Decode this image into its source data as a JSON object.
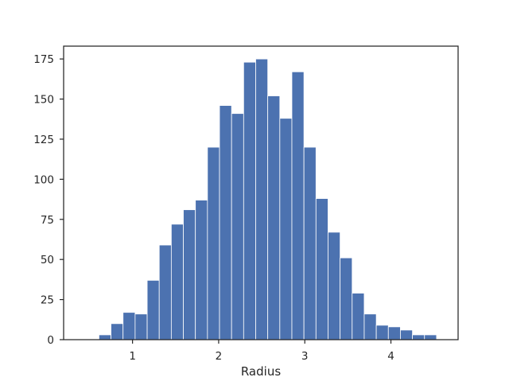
{
  "chart_data": {
    "type": "bar",
    "xlabel": "Radius",
    "ylabel": "",
    "xlim": [
      0.2,
      4.78
    ],
    "ylim": [
      0,
      183
    ],
    "x_ticks": [
      1,
      2,
      3,
      4
    ],
    "x_tick_labels": [
      "1",
      "2",
      "3",
      "4"
    ],
    "y_ticks": [
      0,
      25,
      50,
      75,
      100,
      125,
      150,
      175
    ],
    "y_tick_labels": [
      "0",
      "25",
      "50",
      "75",
      "100",
      "125",
      "150",
      "175"
    ],
    "grid": false,
    "bin_edges": [
      0.61,
      0.75,
      0.89,
      1.03,
      1.17,
      1.31,
      1.45,
      1.59,
      1.73,
      1.87,
      2.01,
      2.15,
      2.29,
      2.43,
      2.57,
      2.71,
      2.85,
      2.99,
      3.13,
      3.27,
      3.41,
      3.55,
      3.69,
      3.83,
      3.97,
      4.11,
      4.25,
      4.39,
      4.53,
      4.67
    ],
    "values": [
      3,
      10,
      17,
      16,
      37,
      59,
      72,
      81,
      87,
      120,
      146,
      141,
      173,
      175,
      152,
      138,
      167,
      120,
      88,
      67,
      51,
      29,
      16,
      9,
      8,
      6,
      3,
      3,
      0,
      3
    ],
    "bar_color": "#4c72b0"
  }
}
